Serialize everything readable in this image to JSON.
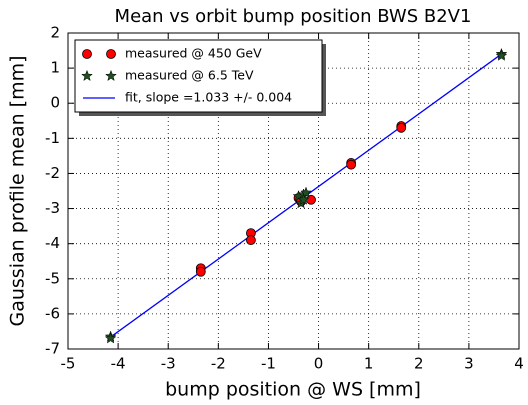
{
  "chart_data": {
    "type": "scatter",
    "title": "Mean vs orbit bump position BWS B2V1",
    "xlabel": "bump position @ WS [mm]",
    "ylabel": "Gaussian profile mean [mm]",
    "xlim": [
      -5,
      4
    ],
    "ylim": [
      -7,
      2
    ],
    "xticks": [
      -5,
      -4,
      -3,
      -2,
      -1,
      0,
      1,
      2,
      3,
      4
    ],
    "yticks": [
      -7,
      -6,
      -5,
      -4,
      -3,
      -2,
      -1,
      0,
      1,
      2
    ],
    "grid": true,
    "legend": "upper left",
    "series": [
      {
        "name": "measured @ 450 GeV",
        "marker": "circle",
        "color": "#ff0000",
        "x": [
          -2.35,
          -2.35,
          -1.35,
          -1.35,
          -0.4,
          -0.35,
          -0.15,
          0.65,
          0.65,
          1.65,
          1.65
        ],
        "values": [
          -4.7,
          -4.8,
          -3.7,
          -3.9,
          -2.7,
          -2.8,
          -2.75,
          -1.7,
          -1.75,
          -0.65,
          -0.7
        ]
      },
      {
        "name": "measured @ 6.5 TeV",
        "marker": "star",
        "color": "#1f4f1f",
        "x": [
          -4.15,
          -4.15,
          3.65,
          3.65,
          -0.4,
          -0.3,
          -0.25,
          -0.35,
          -0.3
        ],
        "values": [
          -6.65,
          -6.7,
          1.4,
          1.35,
          -2.65,
          -2.6,
          -2.55,
          -2.85,
          -2.75
        ]
      },
      {
        "name": "fit, slope =1.033 +/- 0.004",
        "marker": "line",
        "color": "#0000ff",
        "x": [
          -4.15,
          3.65
        ],
        "values": [
          -6.66,
          1.4
        ]
      }
    ]
  }
}
